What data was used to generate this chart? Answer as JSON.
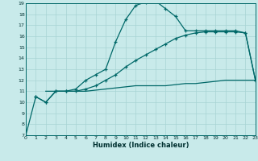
{
  "xlabel": "Humidex (Indice chaleur)",
  "bg_color": "#c8eaea",
  "grid_color": "#a8d4d4",
  "line_color": "#006868",
  "xlim": [
    0,
    23
  ],
  "ylim": [
    7,
    19
  ],
  "xticks": [
    0,
    1,
    2,
    3,
    4,
    5,
    6,
    7,
    8,
    9,
    10,
    11,
    12,
    13,
    14,
    15,
    16,
    17,
    18,
    19,
    20,
    21,
    22,
    23
  ],
  "yticks": [
    7,
    8,
    9,
    10,
    11,
    12,
    13,
    14,
    15,
    16,
    17,
    18,
    19
  ],
  "line1_x": [
    0,
    1,
    2,
    3,
    4,
    5,
    6,
    7,
    8,
    9,
    10,
    11,
    12,
    13,
    14,
    15,
    16,
    17,
    18,
    19,
    20,
    21,
    22,
    23
  ],
  "line1_y": [
    7.0,
    10.5,
    10.0,
    11.0,
    11.0,
    11.2,
    12.0,
    12.5,
    13.0,
    15.5,
    17.5,
    18.8,
    19.1,
    19.2,
    18.5,
    17.8,
    16.5,
    16.5,
    16.5,
    16.5,
    16.5,
    16.5,
    16.3,
    12.0
  ],
  "line2_x": [
    1,
    2,
    3,
    4,
    5,
    6,
    7,
    8,
    9,
    10,
    11,
    12,
    13,
    14,
    15,
    16,
    17,
    18,
    19,
    20,
    21,
    22,
    23
  ],
  "line2_y": [
    10.5,
    10.0,
    11.0,
    11.0,
    11.0,
    11.2,
    11.5,
    12.0,
    12.5,
    13.2,
    13.8,
    14.3,
    14.8,
    15.3,
    15.8,
    16.1,
    16.3,
    16.4,
    16.4,
    16.4,
    16.4,
    16.3,
    12.0
  ],
  "line3_x": [
    2,
    3,
    4,
    5,
    6,
    7,
    8,
    9,
    10,
    11,
    12,
    13,
    14,
    15,
    16,
    17,
    18,
    19,
    20,
    21,
    22,
    23
  ],
  "line3_y": [
    11.0,
    11.0,
    11.0,
    11.0,
    11.0,
    11.1,
    11.2,
    11.3,
    11.4,
    11.5,
    11.5,
    11.5,
    11.5,
    11.6,
    11.7,
    11.7,
    11.8,
    11.9,
    12.0,
    12.0,
    12.0,
    12.0
  ]
}
